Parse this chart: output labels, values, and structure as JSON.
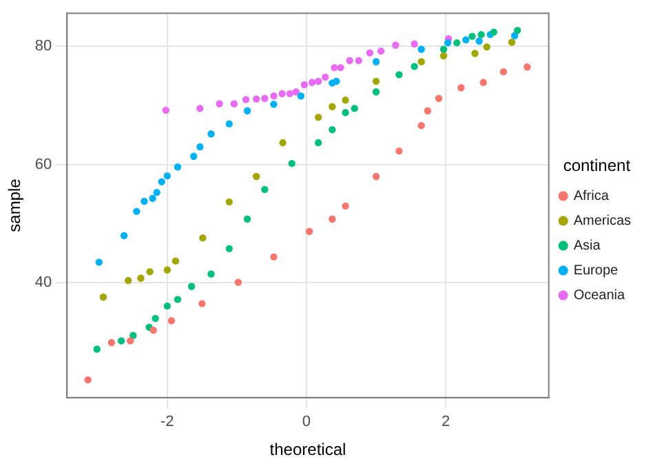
{
  "chart_data": {
    "type": "scatter",
    "xlabel": "theoretical",
    "ylabel": "sample",
    "legend_title": "continent",
    "legend": "right",
    "grid": true,
    "marker": "circle",
    "xlim": [
      -3.44,
      3.48
    ],
    "xticks": [
      -2,
      0,
      2
    ],
    "ylim": [
      20.6,
      85.6
    ],
    "yticks": [
      40,
      60,
      80
    ],
    "series": [
      {
        "name": "Africa",
        "color": "#f8766d",
        "x": [
          -3.14,
          -2.8,
          -2.53,
          -2.2,
          -1.94,
          -1.5,
          -0.98,
          -0.47,
          0.04,
          0.37,
          0.56,
          1.0,
          1.33,
          1.65,
          1.74,
          1.9,
          2.22,
          2.54,
          2.83,
          3.17
        ],
        "values": [
          23.6,
          29.9,
          30.2,
          32.0,
          33.6,
          36.5,
          40.1,
          44.4,
          48.7,
          50.8,
          53.0,
          58.0,
          62.3,
          66.6,
          69.1,
          71.2,
          73.0,
          73.9,
          75.7,
          76.5
        ]
      },
      {
        "name": "Americas",
        "color": "#a3a500",
        "x": [
          -2.92,
          -2.56,
          -2.38,
          -2.25,
          -2.0,
          -1.88,
          -1.49,
          -1.11,
          -0.72,
          -0.34,
          0.17,
          0.37,
          0.56,
          1.0,
          1.65,
          1.97,
          2.42,
          2.59,
          2.95
        ],
        "values": [
          37.6,
          40.4,
          40.8,
          41.9,
          42.2,
          43.7,
          47.6,
          53.7,
          58.0,
          63.7,
          68.0,
          69.8,
          70.9,
          74.1,
          77.4,
          78.4,
          78.8,
          79.9,
          80.7
        ]
      },
      {
        "name": "Asia",
        "color": "#00bf7d",
        "x": [
          -3.01,
          -2.66,
          -2.49,
          -2.26,
          -2.17,
          -2.0,
          -1.85,
          -1.65,
          -1.37,
          -1.11,
          -0.85,
          -0.6,
          -0.21,
          0.17,
          0.37,
          0.56,
          0.69,
          1.0,
          1.33,
          1.55,
          1.97,
          2.16,
          2.38,
          2.51,
          2.69,
          3.03
        ],
        "values": [
          28.8,
          30.2,
          31.1,
          32.5,
          34.0,
          36.1,
          37.2,
          39.4,
          41.5,
          45.8,
          50.8,
          55.8,
          60.2,
          63.7,
          65.9,
          68.8,
          69.5,
          72.3,
          75.2,
          76.6,
          79.5,
          80.6,
          81.7,
          82.0,
          82.4,
          82.7
        ]
      },
      {
        "name": "Europe",
        "color": "#00b0f6",
        "x": [
          -2.98,
          -2.62,
          -2.44,
          -2.33,
          -2.21,
          -2.15,
          -2.08,
          -2.0,
          -1.85,
          -1.62,
          -1.53,
          -1.37,
          -1.11,
          -0.85,
          -0.47,
          -0.08,
          0.37,
          0.43,
          1.0,
          1.65,
          2.03,
          2.29,
          2.48,
          2.64,
          2.99
        ],
        "values": [
          43.5,
          48.0,
          52.1,
          53.8,
          54.3,
          55.3,
          57.1,
          58.1,
          59.6,
          61.4,
          63.0,
          65.2,
          66.9,
          69.1,
          70.2,
          71.6,
          73.8,
          74.1,
          77.4,
          79.5,
          80.6,
          81.1,
          80.9,
          82.0,
          81.8
        ]
      },
      {
        "name": "Oceania",
        "color": "#e76bf3",
        "x": [
          -2.02,
          -1.53,
          -1.25,
          -1.04,
          -0.87,
          -0.72,
          -0.6,
          -0.47,
          -0.35,
          -0.24,
          -0.15,
          -0.03,
          0.08,
          0.17,
          0.27,
          0.4,
          0.49,
          0.62,
          0.75,
          0.91,
          1.07,
          1.28,
          1.55,
          2.04
        ],
        "values": [
          69.2,
          69.5,
          70.3,
          70.3,
          71.0,
          71.1,
          71.2,
          71.6,
          72.0,
          72.0,
          72.3,
          73.5,
          73.9,
          74.1,
          74.8,
          76.4,
          76.4,
          77.6,
          77.6,
          78.9,
          79.2,
          80.2,
          80.4,
          81.3
        ]
      }
    ]
  }
}
